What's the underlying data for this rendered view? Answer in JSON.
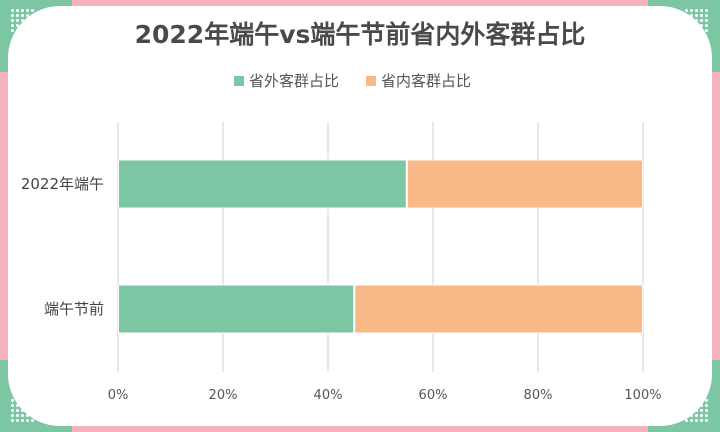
{
  "chart_data": {
    "type": "bar",
    "orientation": "horizontal",
    "stacked": true,
    "title": "2022年端午vs端午节前省内外客群占比",
    "categories": [
      "2022年端午",
      "端午节前"
    ],
    "series": [
      {
        "name": "省外客群占比",
        "values": [
          55,
          45
        ],
        "color": "#7dc6a4"
      },
      {
        "name": "省内客群占比",
        "values": [
          45,
          55
        ],
        "color": "#fab787"
      }
    ],
    "x_ticks": [
      "0%",
      "20%",
      "40%",
      "60%",
      "80%",
      "100%"
    ],
    "xlim": [
      0,
      100
    ],
    "grid": true,
    "legend_position": "top"
  },
  "decoration": {
    "frame_color": "#f4a6b2",
    "corner_color": "#7dc6a4"
  }
}
